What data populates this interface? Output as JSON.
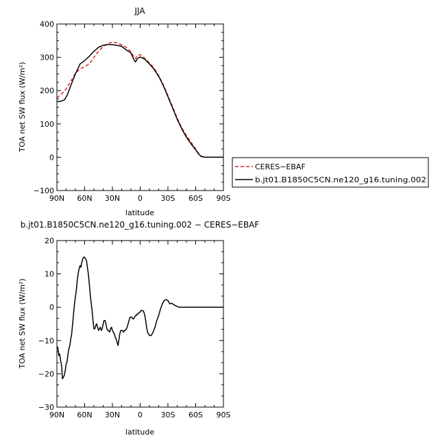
{
  "chart_data": [
    {
      "type": "line",
      "title": "JJA",
      "xlabel": "latitude",
      "ylabel": "TOA net SW flux (W/m²)",
      "xlim": [
        90,
        -90
      ],
      "ylim": [
        -100,
        400
      ],
      "x_ticks": [
        90,
        60,
        30,
        0,
        -30,
        -60,
        -90
      ],
      "x_tick_labels": [
        "90N",
        "60N",
        "30N",
        "0",
        "30S",
        "60S",
        "90S"
      ],
      "y_ticks": [
        -100,
        0,
        100,
        200,
        300,
        400
      ],
      "y_tick_labels": [
        "−100",
        "0",
        "100",
        "200",
        "300",
        "400"
      ],
      "grid": false,
      "legend_position": "right",
      "series": [
        {
          "name": "CERES−EBAF",
          "color": "#e0201b",
          "dash": "dashed",
          "x": [
            90,
            85,
            80,
            75,
            70,
            65,
            60,
            55,
            50,
            45,
            40,
            35,
            30,
            25,
            20,
            15,
            10,
            7,
            5,
            3,
            0,
            -5,
            -10,
            -15,
            -20,
            -25,
            -30,
            -35,
            -40,
            -45,
            -50,
            -55,
            -60,
            -63,
            -66,
            -70,
            -75,
            -80,
            -85,
            -90
          ],
          "values": [
            178,
            190,
            205,
            228,
            252,
            265,
            272,
            280,
            300,
            318,
            332,
            342,
            345,
            344,
            337,
            330,
            317,
            302,
            296,
            305,
            308,
            297,
            283,
            268,
            245,
            218,
            185,
            152,
            118,
            88,
            65,
            45,
            25,
            12,
            3,
            0,
            0,
            0,
            0,
            0
          ]
        },
        {
          "name": "b.jt01.B1850C5CN.ne120_g16.tuning.002",
          "color": "#000000",
          "dash": "solid",
          "x": [
            90,
            86,
            82,
            79,
            75,
            70,
            65,
            60,
            55,
            50,
            45,
            40,
            35,
            30,
            25,
            20,
            15,
            10,
            7,
            5,
            3,
            0,
            -5,
            -10,
            -15,
            -20,
            -25,
            -30,
            -35,
            -40,
            -45,
            -50,
            -55,
            -60,
            -63,
            -66,
            -70,
            -75,
            -80,
            -85,
            -90
          ],
          "values": [
            167,
            168,
            172,
            185,
            215,
            250,
            280,
            290,
            303,
            318,
            330,
            336,
            338,
            338,
            336,
            333,
            322,
            313,
            294,
            286,
            296,
            301,
            294,
            280,
            264,
            243,
            215,
            182,
            148,
            114,
            85,
            60,
            40,
            22,
            10,
            2,
            0,
            0,
            0,
            0,
            0
          ]
        }
      ]
    },
    {
      "type": "line",
      "title": "b.jt01.B1850C5CN.ne120_g16.tuning.002 − CERES−EBAF",
      "xlabel": "latitude",
      "ylabel": "TOA net SW flux (W/m²)",
      "xlim": [
        90,
        -90
      ],
      "ylim": [
        -30,
        20
      ],
      "x_ticks": [
        90,
        60,
        30,
        0,
        -30,
        -60,
        -90
      ],
      "x_tick_labels": [
        "90N",
        "60N",
        "30N",
        "0",
        "30S",
        "60S",
        "90S"
      ],
      "y_ticks": [
        -30,
        -20,
        -10,
        0,
        10,
        20
      ],
      "y_tick_labels": [
        "−30",
        "−20",
        "−10",
        "0",
        "10",
        "20"
      ],
      "grid": false,
      "series": [
        {
          "color": "#000000",
          "dash": "solid",
          "x": [
            90,
            89,
            88,
            87,
            86,
            85,
            84,
            83,
            82,
            81,
            80,
            79,
            78,
            77,
            76,
            75,
            74,
            73,
            72,
            71,
            70,
            69,
            68,
            67,
            66,
            65,
            64,
            63,
            62,
            61,
            60,
            59,
            58,
            57,
            56,
            55,
            54,
            53,
            52,
            51,
            50,
            49,
            48,
            47,
            46,
            45,
            44,
            43,
            42,
            41,
            40,
            39,
            38,
            37,
            36,
            35,
            34,
            33,
            32,
            31,
            30,
            29,
            28,
            27,
            26,
            25,
            24,
            23,
            22,
            21,
            20,
            19,
            18,
            17,
            16,
            15,
            14,
            13,
            12,
            11,
            10,
            9,
            8,
            7,
            6,
            5,
            4,
            3,
            2,
            1,
            0,
            -1,
            -2,
            -3,
            -4,
            -5,
            -6,
            -7,
            -8,
            -10,
            -12,
            -14,
            -16,
            -18,
            -20,
            -22,
            -24,
            -26,
            -28,
            -30,
            -32,
            -34,
            -36,
            -38,
            -40,
            -42,
            -44,
            -46,
            -48,
            -50,
            -52,
            -54,
            -56,
            -58,
            -60,
            -62,
            -64,
            -66,
            -68,
            -70,
            -72,
            -74,
            -76,
            -78,
            -80,
            -82,
            -84,
            -86,
            -88,
            -90
          ],
          "values": [
            -12,
            -12,
            -14.5,
            -14,
            -16,
            -17.5,
            -21.5,
            -21,
            -20.5,
            -19,
            -17,
            -16.5,
            -14,
            -12.5,
            -11.5,
            -9.5,
            -8,
            -5,
            -2,
            1,
            3,
            5,
            8,
            10,
            11.5,
            12.5,
            12,
            13.5,
            14.5,
            15,
            15,
            14.5,
            14,
            12,
            10,
            7,
            4,
            1.5,
            -1,
            -4,
            -6.5,
            -6.5,
            -5.5,
            -5,
            -6,
            -7,
            -6.5,
            -6,
            -7,
            -6.5,
            -5,
            -4,
            -4,
            -5,
            -6.5,
            -7,
            -7,
            -7.5,
            -6.5,
            -6,
            -7,
            -7.5,
            -8,
            -9,
            -9.5,
            -10.5,
            -11.5,
            -10,
            -8,
            -7,
            -7,
            -7,
            -7.5,
            -7,
            -7,
            -6.5,
            -6,
            -5,
            -4,
            -3,
            -3,
            -3,
            -3.5,
            -3.5,
            -3,
            -2.5,
            -2.5,
            -2,
            -2,
            -1.5,
            -1.5,
            -1,
            -1,
            -1,
            -1.5,
            -2.5,
            -4,
            -6,
            -7.5,
            -8.5,
            -8.5,
            -7.5,
            -6,
            -4,
            -2.5,
            -0.5,
            1,
            2,
            2.3,
            2,
            1,
            1.2,
            0.8,
            0.5,
            0.2,
            0,
            0,
            0,
            0,
            0,
            0,
            0,
            0,
            0,
            0,
            0,
            0,
            0,
            0,
            0,
            0,
            0,
            0,
            0,
            0,
            0,
            0,
            0,
            0,
            0
          ]
        }
      ]
    }
  ]
}
